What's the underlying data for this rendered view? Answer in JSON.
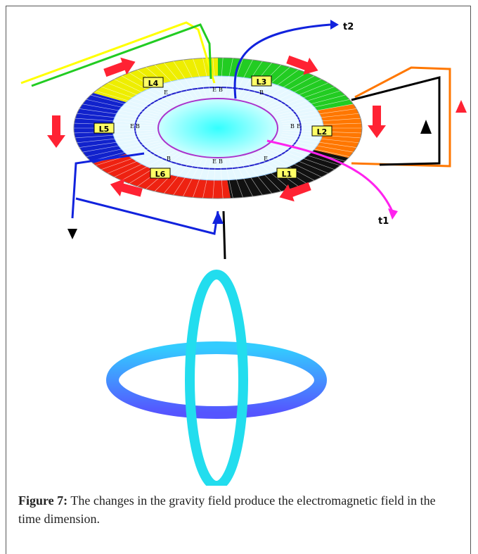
{
  "figure": {
    "sections": [
      "L1",
      "L2",
      "L3",
      "L4",
      "L5",
      "L6"
    ],
    "t1": "t1",
    "t2": "t2",
    "field_marks": [
      "E",
      "B"
    ]
  },
  "caption": {
    "label": "Figure 7:",
    "text": "The changes in the gravity field produce the electromagnetic field in the time dimension."
  }
}
